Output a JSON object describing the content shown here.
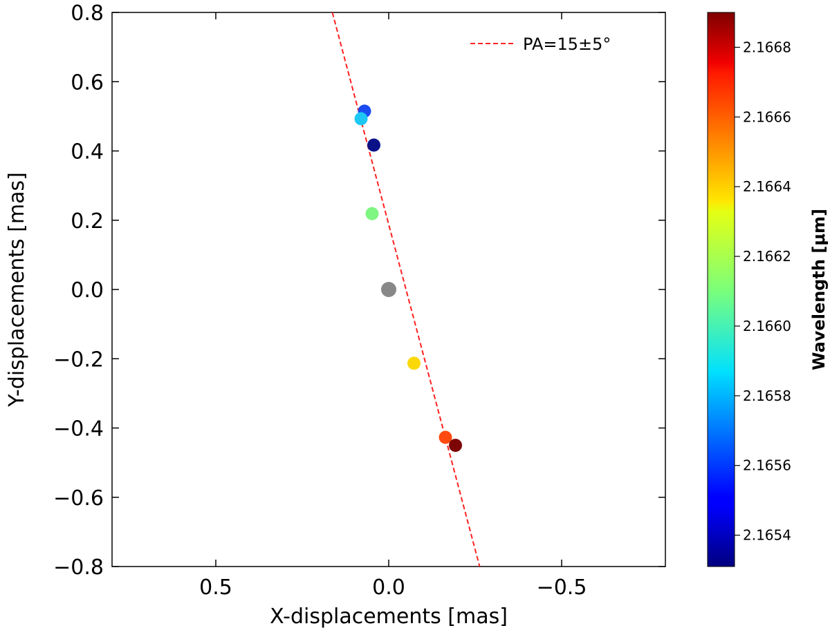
{
  "chart_data": {
    "type": "scatter",
    "title": "",
    "xlabel": "X-displacements [mas]",
    "ylabel": "Y-displacements [mas]",
    "xlim": [
      0.8,
      -0.8
    ],
    "ylim": [
      -0.8,
      0.8
    ],
    "x_ticks": [
      0.5,
      0.0,
      -0.5
    ],
    "x_tick_labels": [
      "0.5",
      "0.0",
      "−0.5"
    ],
    "y_ticks": [
      0.8,
      0.6,
      0.4,
      0.2,
      0.0,
      -0.2,
      -0.4,
      -0.6,
      -0.8
    ],
    "y_tick_labels": [
      "0.8",
      "0.6",
      "0.4",
      "0.2",
      "0.0",
      "−0.2",
      "−0.4",
      "−0.6",
      "−0.8"
    ],
    "points": [
      {
        "x": 0.07,
        "y": 0.515,
        "wavelength": 2.16558,
        "color": "#1a4cf0"
      },
      {
        "x": 0.08,
        "y": 0.493,
        "wavelength": 2.16582,
        "color": "#1ec8f5"
      },
      {
        "x": 0.043,
        "y": 0.417,
        "wavelength": 2.16531,
        "color": "#0b1288"
      },
      {
        "x": 0.048,
        "y": 0.219,
        "wavelength": 2.16614,
        "color": "#7ff582"
      },
      {
        "x": 0.0,
        "y": 0.0,
        "wavelength": null,
        "color": "#888888",
        "reference": true
      },
      {
        "x": -0.073,
        "y": -0.213,
        "wavelength": 2.16638,
        "color": "#fbd80a"
      },
      {
        "x": -0.164,
        "y": -0.427,
        "wavelength": 2.16663,
        "color": "#ff4a0f"
      },
      {
        "x": -0.193,
        "y": -0.45,
        "wavelength": 2.1669,
        "color": "#7d0505"
      }
    ],
    "fit_line": {
      "label": "PA=15±5°",
      "style": "dashed",
      "color": "#ff1f1f",
      "from": {
        "x": 0.163,
        "y": 0.8
      },
      "to": {
        "x": -0.263,
        "y": -0.8
      }
    },
    "legend": {
      "location": "top-right"
    },
    "colorbar": {
      "label": "Wavelength [μm]",
      "min": 2.16531,
      "max": 2.1669,
      "ticks": [
        2.1654,
        2.1656,
        2.1658,
        2.166,
        2.1662,
        2.1664,
        2.1666,
        2.1668
      ],
      "tick_labels": [
        "2.1654",
        "2.1656",
        "2.1658",
        "2.1660",
        "2.1662",
        "2.1664",
        "2.1666",
        "2.1668"
      ],
      "colormap": "jet"
    }
  }
}
